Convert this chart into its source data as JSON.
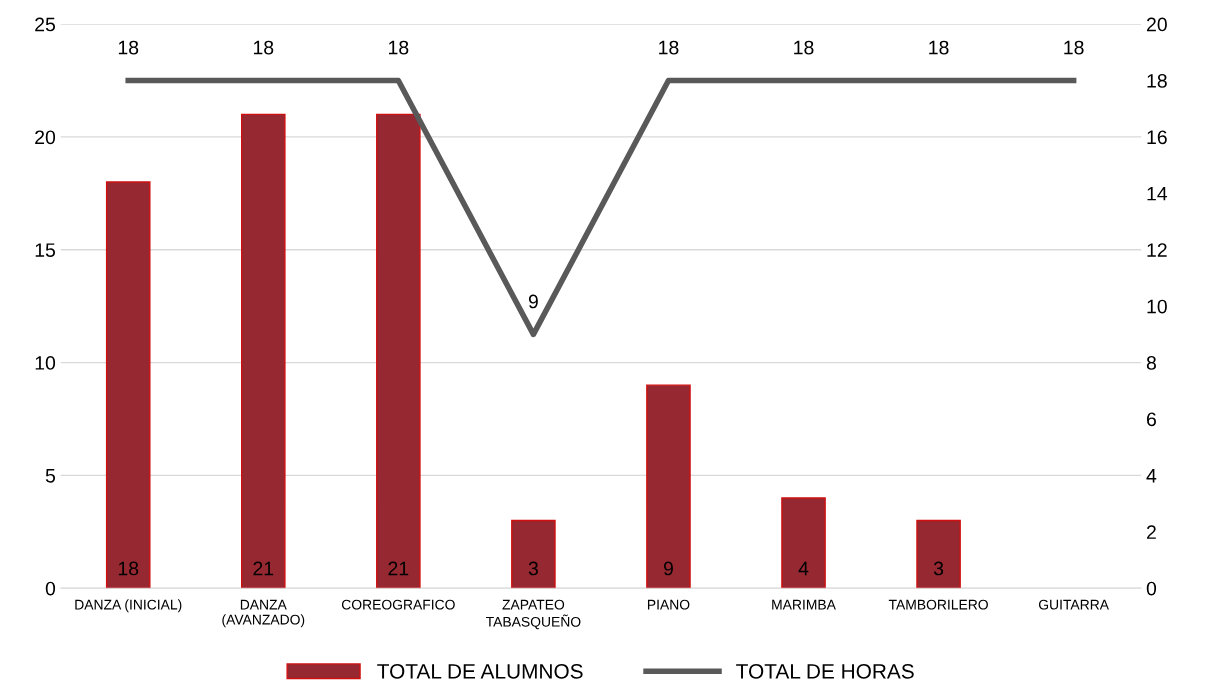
{
  "chart_data": {
    "type": "bar",
    "categories": [
      "DANZA (INICIAL)",
      "DANZA\n(AVANZADO)",
      "COREOGRAFICO",
      "ZAPATEO\nTABASQUEÑO",
      "PIANO",
      "MARIMBA",
      "TAMBORILERO",
      "GUITARRA"
    ],
    "series": [
      {
        "name": "TOTAL DE ALUMNOS",
        "color": "#952830",
        "values": [
          18,
          21,
          21,
          3,
          9,
          4,
          3,
          null
        ]
      },
      {
        "name": "TOTAL DE HORAS",
        "type": "line",
        "axis": "y2",
        "color": "#595959",
        "values": [
          18,
          18,
          18,
          9,
          18,
          18,
          18,
          18
        ]
      }
    ],
    "ylim": [
      0,
      25
    ],
    "yticks": [
      0,
      5,
      10,
      15,
      20,
      25
    ],
    "y2lim": [
      0,
      20
    ],
    "y2ticks": [
      0,
      2,
      4,
      6,
      8,
      10,
      12,
      14,
      16,
      18,
      20
    ],
    "grid": "y",
    "legend": "bottom",
    "data_labels": true,
    "marker": "none",
    "line_style": "solid"
  }
}
